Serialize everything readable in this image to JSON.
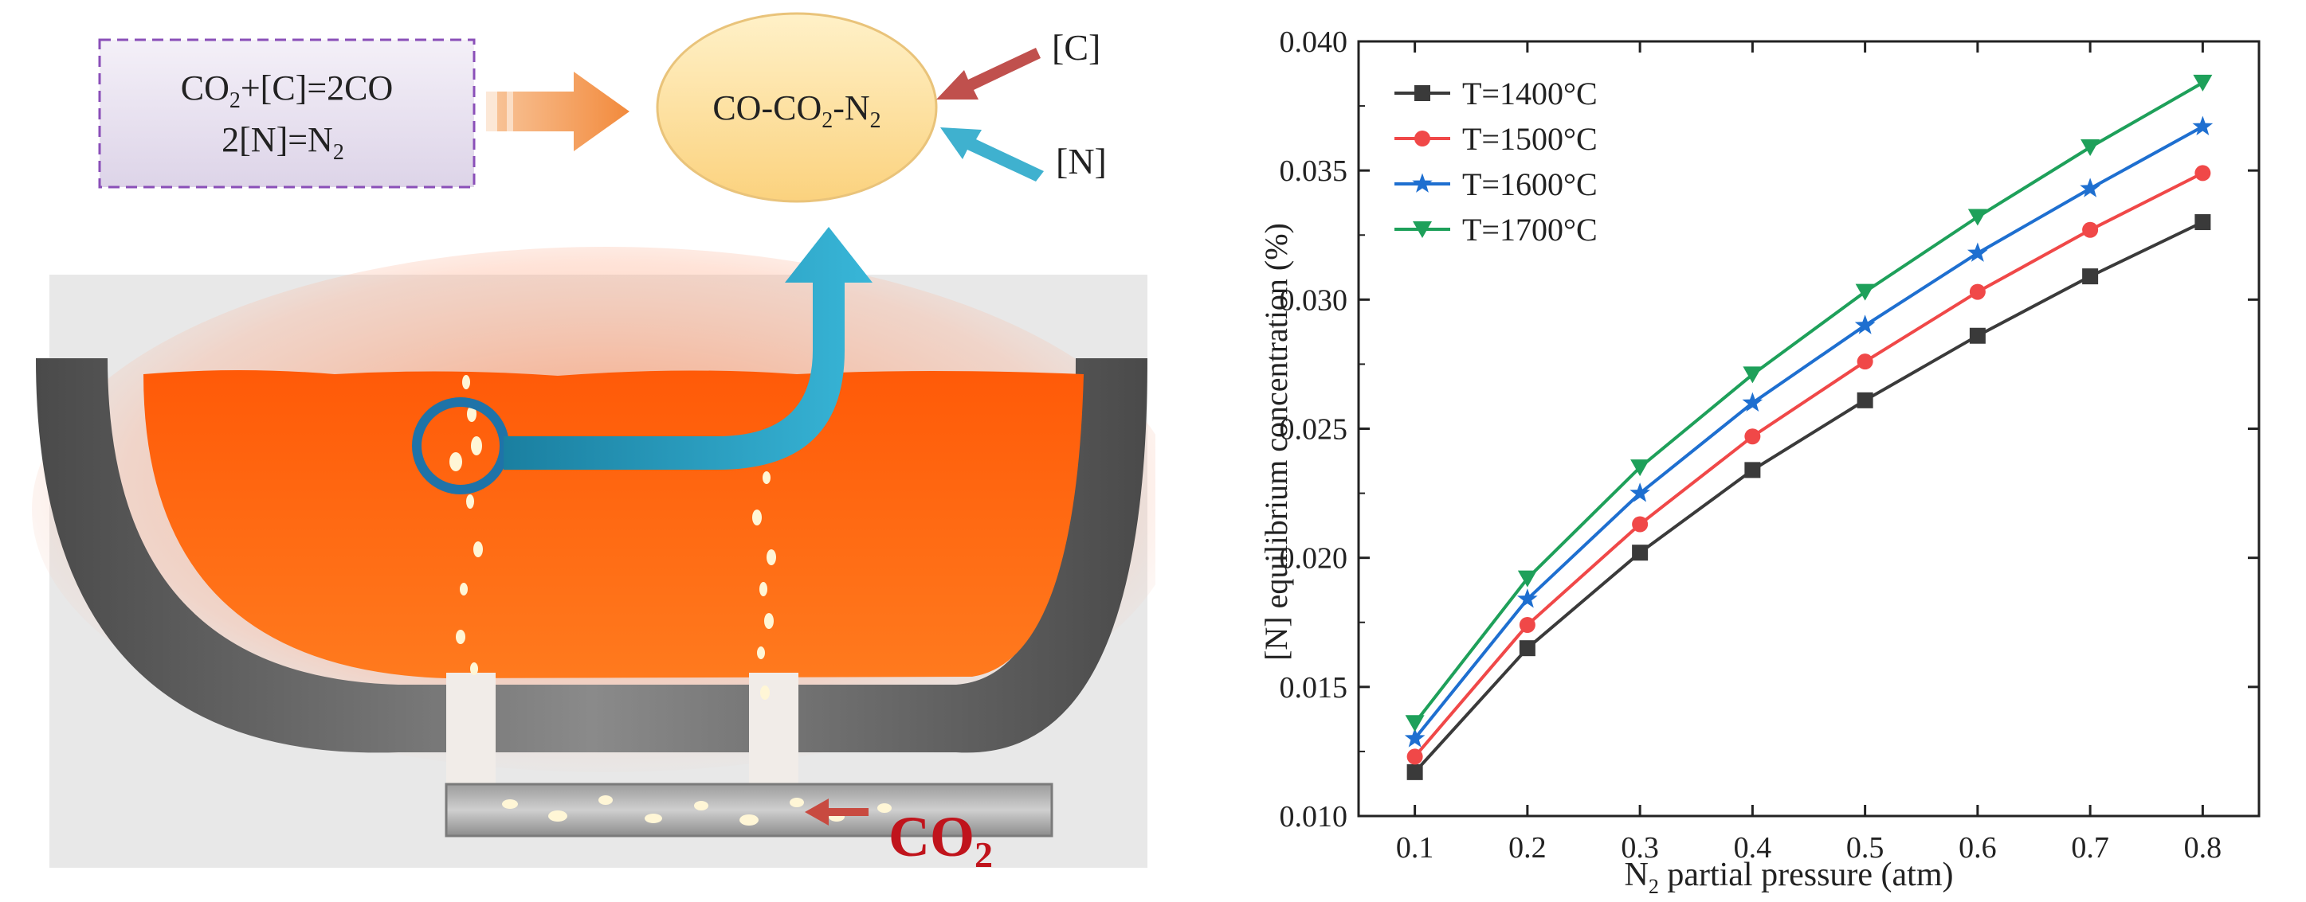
{
  "diagram": {
    "reaction_box": {
      "line1": {
        "a": "CO",
        "a_sub": "2",
        "b": "+[C]=2CO"
      },
      "line2": {
        "a": "2[N]=N",
        "a_sub": "2"
      }
    },
    "bubble": {
      "a": "CO-CO",
      "a_sub": "2",
      "b": "-N",
      "b_sub": "2"
    },
    "carbon_label": "[C]",
    "nitrogen_label": "[N]",
    "gas_label": {
      "a": "CO",
      "a_sub": "2"
    },
    "colors": {
      "melt": "#ff6a10",
      "vessel": "#6e6e6e",
      "flow_arrow": "#1f8fb0",
      "gas_text": "#c0141c",
      "box_border": "#8a4fb8",
      "box_fill": "#e9e3f1",
      "bubble_fill": "#fde2a0",
      "c_arrow": "#c0504d",
      "n_arrow": "#3fb1cf",
      "feed_arrow": "#f5a05a"
    }
  },
  "chart_data": {
    "type": "line",
    "xlabel": {
      "a": "N",
      "a_sub": "2",
      "b": " partial pressure (atm)"
    },
    "ylabel": "[N] equilibrium concentration (%)",
    "x": [
      0.1,
      0.2,
      0.3,
      0.4,
      0.5,
      0.6,
      0.7,
      0.8
    ],
    "xlim": [
      0.05,
      0.85
    ],
    "ylim": [
      0.01,
      0.04
    ],
    "xticks": [
      "0.1",
      "0.2",
      "0.3",
      "0.4",
      "0.5",
      "0.6",
      "0.7",
      "0.8"
    ],
    "yticks": [
      "0.010",
      "0.015",
      "0.020",
      "0.025",
      "0.030",
      "0.035",
      "0.040"
    ],
    "grid": false,
    "legend_position": "top-left",
    "series": [
      {
        "name": "T=1400°C",
        "color": "#3a3a3a",
        "marker": "square",
        "values": [
          0.0117,
          0.0165,
          0.0202,
          0.0234,
          0.0261,
          0.0286,
          0.0309,
          0.033
        ]
      },
      {
        "name": "T=1500°C",
        "color": "#f04848",
        "marker": "circle",
        "values": [
          0.0123,
          0.0174,
          0.0213,
          0.0247,
          0.0276,
          0.0303,
          0.0327,
          0.0349
        ]
      },
      {
        "name": "T=1600°C",
        "color": "#1e6fd0",
        "marker": "star",
        "values": [
          0.013,
          0.0184,
          0.0225,
          0.026,
          0.029,
          0.0318,
          0.0343,
          0.0367
        ]
      },
      {
        "name": "T=1700°C",
        "color": "#1ea05a",
        "marker": "triangle-down",
        "values": [
          0.0136,
          0.0192,
          0.0235,
          0.0271,
          0.0303,
          0.0332,
          0.0359,
          0.0384
        ]
      }
    ]
  }
}
